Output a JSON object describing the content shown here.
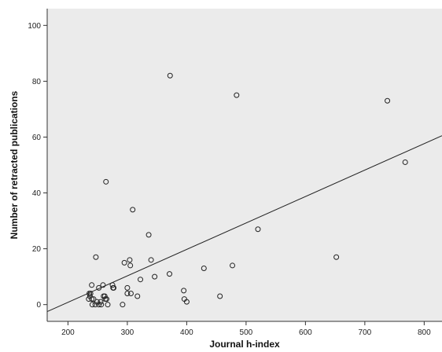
{
  "chart_data": {
    "type": "scatter",
    "xlabel": "Journal h-index",
    "ylabel": "Number of retracted publications",
    "xlim": [
      165,
      830
    ],
    "ylim": [
      -6,
      106
    ],
    "xticks": [
      200,
      300,
      400,
      500,
      600,
      700,
      800
    ],
    "yticks": [
      0,
      20,
      40,
      60,
      80,
      100
    ],
    "grid": false,
    "background": "#ebebeb",
    "marker": "open-circle",
    "fit_line": {
      "type": "linear",
      "points": [
        [
          165,
          -2.5
        ],
        [
          830,
          60.5
        ]
      ]
    },
    "points": [
      [
        235,
        2
      ],
      [
        236,
        4
      ],
      [
        237,
        3
      ],
      [
        238,
        4
      ],
      [
        240,
        7
      ],
      [
        240,
        2
      ],
      [
        241,
        0
      ],
      [
        243,
        2
      ],
      [
        246,
        0
      ],
      [
        247,
        17
      ],
      [
        249,
        1
      ],
      [
        252,
        6
      ],
      [
        252,
        0
      ],
      [
        255,
        1
      ],
      [
        256,
        0
      ],
      [
        259,
        7
      ],
      [
        260,
        3
      ],
      [
        262,
        3
      ],
      [
        263,
        2
      ],
      [
        264,
        44
      ],
      [
        265,
        2
      ],
      [
        267,
        0
      ],
      [
        275,
        7
      ],
      [
        276,
        6
      ],
      [
        277,
        6
      ],
      [
        292,
        0
      ],
      [
        295,
        15
      ],
      [
        300,
        6
      ],
      [
        300,
        4
      ],
      [
        304,
        16
      ],
      [
        305,
        14
      ],
      [
        306,
        4
      ],
      [
        309,
        34
      ],
      [
        317,
        3
      ],
      [
        322,
        9
      ],
      [
        336,
        25
      ],
      [
        340,
        16
      ],
      [
        346,
        10
      ],
      [
        371,
        11
      ],
      [
        372,
        82
      ],
      [
        395,
        5
      ],
      [
        396,
        2
      ],
      [
        400,
        1
      ],
      [
        429,
        13
      ],
      [
        456,
        3
      ],
      [
        477,
        14
      ],
      [
        484,
        75
      ],
      [
        520,
        27
      ],
      [
        652,
        17
      ],
      [
        738,
        73
      ],
      [
        768,
        51
      ]
    ]
  }
}
